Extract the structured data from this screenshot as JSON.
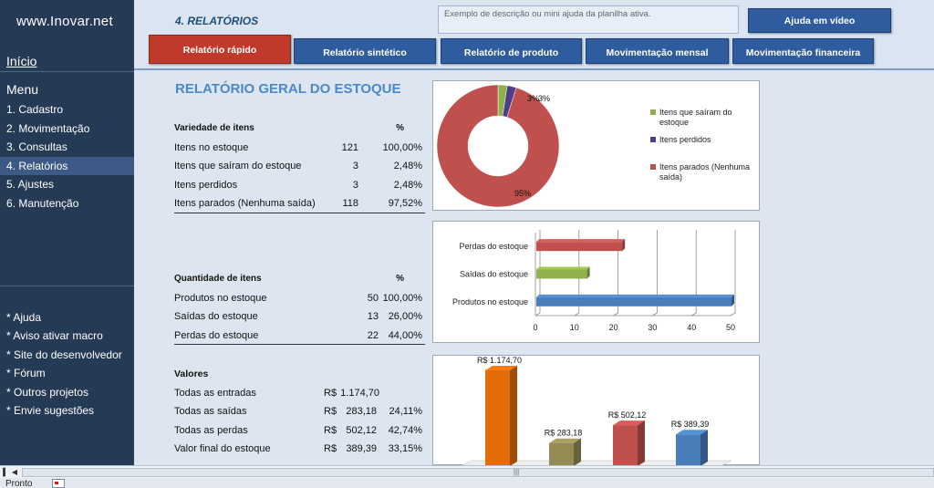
{
  "sidebar": {
    "site": "www.Inovar.net",
    "home": "Início",
    "menu_title": "Menu",
    "items": [
      {
        "label": "1. Cadastro"
      },
      {
        "label": "2. Movimentação"
      },
      {
        "label": "3. Consultas"
      },
      {
        "label": "4. Relatórios"
      },
      {
        "label": "5. Ajustes"
      },
      {
        "label": "6. Manutenção"
      }
    ],
    "links": [
      {
        "label": "* Ajuda"
      },
      {
        "label": "* Aviso ativar macro"
      },
      {
        "label": "* Site do desenvolvedor"
      },
      {
        "label": "* Fórum"
      },
      {
        "label": "* Outros projetos"
      },
      {
        "label": "* Envie sugestões"
      }
    ]
  },
  "header": {
    "section": "4. RELATÓRIOS",
    "help_text": "Exemplo de descrição ou mini ajuda da planilha ativa.",
    "help_button": "Ajuda em vídeo",
    "tabs": [
      {
        "label": "Relatório rápido"
      },
      {
        "label": "Relatório  sintético"
      },
      {
        "label": "Relatório de produto"
      },
      {
        "label": "Movimentação mensal"
      },
      {
        "label": "Movimentação financeira"
      }
    ]
  },
  "report": {
    "title": "RELATÓRIO GERAL DO ESTOQUE",
    "variety": {
      "header": "Variedade de itens",
      "pct_header": "%",
      "rows": [
        {
          "label": "Itens no estoque",
          "value": "121",
          "pct": "100,00%"
        },
        {
          "label": "Itens que saíram do estoque",
          "value": "3",
          "pct": "2,48%"
        },
        {
          "label": "Itens perdidos",
          "value": "3",
          "pct": "2,48%"
        },
        {
          "label": "Itens parados (Nenhuma saída)",
          "value": "118",
          "pct": "97,52%"
        }
      ]
    },
    "quantity": {
      "header": "Quantidade de itens",
      "pct_header": "%",
      "rows": [
        {
          "label": "Produtos no estoque",
          "value": "50",
          "pct": "100,00%"
        },
        {
          "label": "Saídas do estoque",
          "value": "13",
          "pct": "26,00%"
        },
        {
          "label": "Perdas do estoque",
          "value": "22",
          "pct": "44,00%"
        }
      ]
    },
    "values": {
      "header": "Valores",
      "rows": [
        {
          "label": "Todas as entradas",
          "currency": "R$",
          "value": "1.174,70",
          "pct": ""
        },
        {
          "label": "Todas as saídas",
          "currency": "R$",
          "value": "283,18",
          "pct": "24,11%"
        },
        {
          "label": "Todas as perdas",
          "currency": "R$",
          "value": "502,12",
          "pct": "42,74%"
        },
        {
          "label": "Valor final do estoque",
          "currency": "R$",
          "value": "389,39",
          "pct": "33,15%"
        }
      ]
    }
  },
  "status": {
    "ready": "Pronto"
  },
  "chart_data": [
    {
      "type": "pie",
      "variant": "donut",
      "categories": [
        "Itens que saíram do estoque",
        "Itens perdidos",
        "Itens parados (Nenhuma saída)"
      ],
      "values": [
        3,
        3,
        118
      ],
      "data_labels": [
        "3%",
        "3%",
        "95%"
      ],
      "colors": [
        "#8fb04a",
        "#4b3f8a",
        "#c0504d"
      ],
      "legend_position": "right"
    },
    {
      "type": "bar",
      "orientation": "horizontal",
      "categories": [
        "Produtos no estoque",
        "Saídas do estoque",
        "Perdas do estoque"
      ],
      "values": [
        50,
        13,
        22
      ],
      "colors": [
        "#4a7ebb",
        "#8fb04a",
        "#c0504d"
      ],
      "xlim": [
        0,
        50
      ],
      "xticks": [
        0,
        10,
        20,
        30,
        40,
        50
      ],
      "grid": true
    },
    {
      "type": "bar",
      "orientation": "vertical",
      "categories": [
        "Todas as entradas",
        "Todas as saídas",
        "Todas as perdas",
        "Valor final do estoque"
      ],
      "values": [
        1174.7,
        283.18,
        502.12,
        389.39
      ],
      "data_labels": [
        "R$ 1.174,70",
        "R$ 283,18",
        "R$ 502,12",
        "R$ 389,39"
      ],
      "colors": [
        "#e36c09",
        "#948a54",
        "#c0504d",
        "#4a7ebb"
      ]
    }
  ]
}
